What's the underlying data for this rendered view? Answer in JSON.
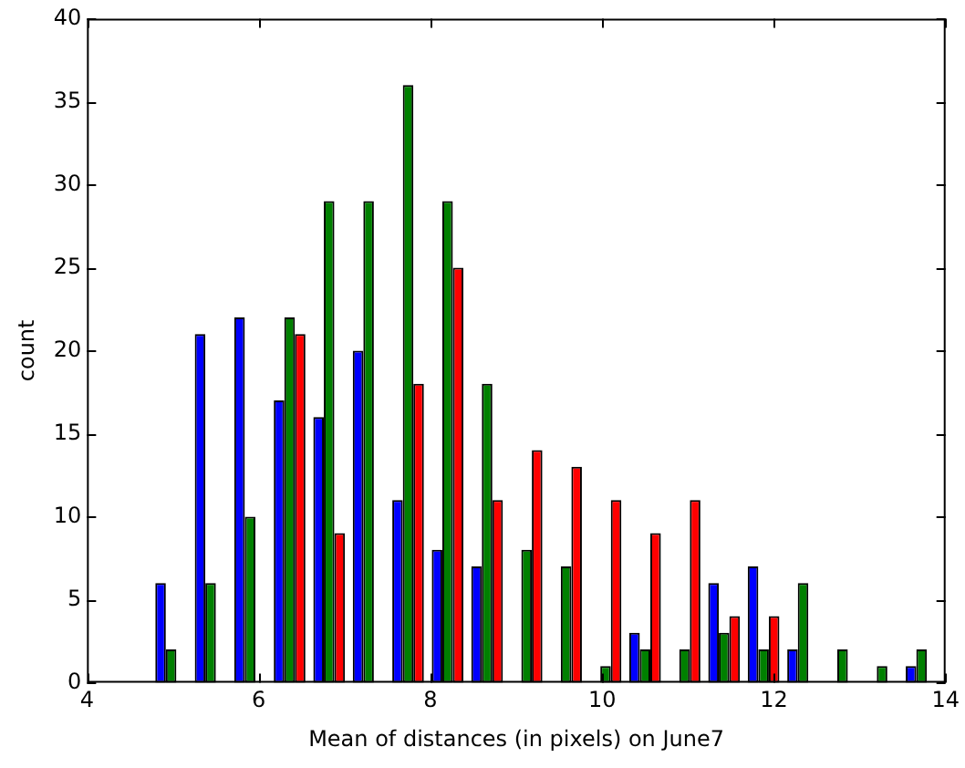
{
  "chart_data": {
    "type": "histogram",
    "xlabel": "Mean of distances (in pixels) on June7",
    "ylabel": "count",
    "bins": [
      4.75,
      5.21,
      5.67,
      6.13,
      6.59,
      7.05,
      7.51,
      7.97,
      8.43,
      8.89,
      9.35,
      9.81,
      10.27,
      10.73,
      11.19,
      11.65,
      12.11,
      12.57,
      13.03,
      13.49,
      13.95
    ],
    "series": [
      {
        "color": "#0000ff",
        "values": [
          6,
          21,
          22,
          17,
          16,
          20,
          11,
          8,
          7,
          0,
          0,
          0,
          3,
          0,
          6,
          7,
          2,
          0,
          0,
          1
        ]
      },
      {
        "color": "#008000",
        "values": [
          2,
          6,
          10,
          22,
          29,
          29,
          36,
          29,
          18,
          8,
          7,
          1,
          2,
          2,
          3,
          2,
          6,
          2,
          1,
          2
        ]
      },
      {
        "color": "#ff0000",
        "values": [
          0,
          0,
          0,
          21,
          9,
          0,
          18,
          25,
          11,
          14,
          13,
          11,
          9,
          11,
          4,
          4,
          0,
          0,
          0,
          0
        ]
      }
    ],
    "xlim": [
      4,
      14
    ],
    "xticks": [
      4,
      6,
      8,
      10,
      12,
      14
    ],
    "ylim": [
      0,
      40
    ],
    "yticks": [
      0,
      5,
      10,
      15,
      20,
      25,
      30,
      35,
      40
    ],
    "grid": false,
    "legend": false
  }
}
